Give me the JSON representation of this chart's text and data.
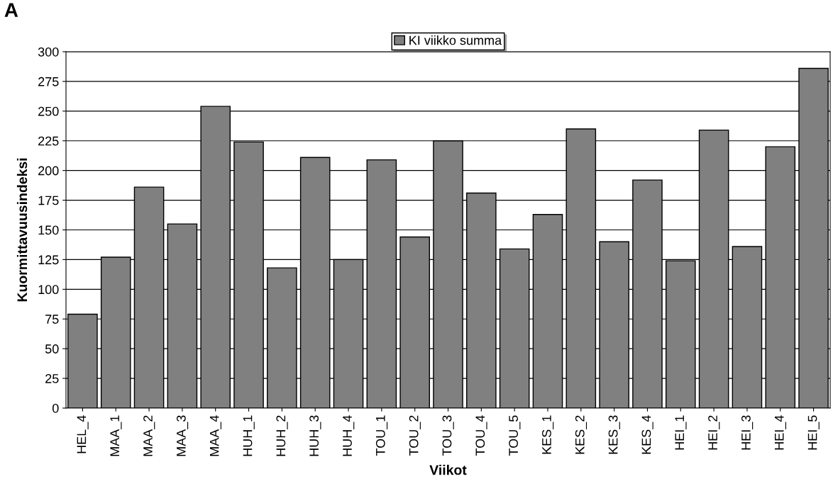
{
  "chart_data": {
    "type": "bar",
    "title": "A",
    "xlabel": "Viikot",
    "ylabel": "Kuormittavuusindeksi",
    "categories": [
      "HEL_4",
      "MAA_1",
      "MAA_2",
      "MAA_3",
      "MAA_4",
      "HUH_1",
      "HUH_2",
      "HUH_3",
      "HUH_4",
      "TOU_1",
      "TOU_2",
      "TOU_3",
      "TOU_4",
      "TOU_5",
      "KES_1",
      "KES_2",
      "KES_3",
      "KES_4",
      "HEI_1",
      "HEI_2",
      "HEI_3",
      "HEI_4",
      "HEI_5"
    ],
    "series": [
      {
        "name": "KI viikko summa",
        "color": "#808080",
        "values": [
          79,
          127,
          186,
          155,
          254,
          224,
          118,
          211,
          125,
          209,
          144,
          225,
          181,
          134,
          163,
          235,
          140,
          192,
          124,
          234,
          136,
          220,
          286
        ]
      }
    ],
    "ylim": [
      0,
      300
    ],
    "yticks": [
      0,
      25,
      50,
      75,
      100,
      125,
      150,
      175,
      200,
      225,
      250,
      275,
      300
    ],
    "grid": "y",
    "legend": "top"
  }
}
